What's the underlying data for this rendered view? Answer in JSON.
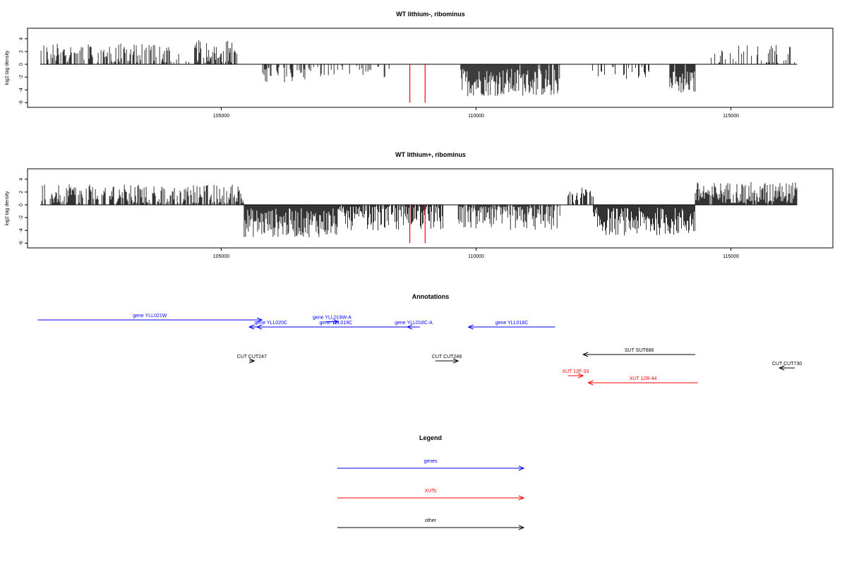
{
  "chart_data": [
    {
      "type": "bar",
      "title": "WT lithium-, ribominus",
      "ylabel": "log2 tag density",
      "xlim": [
        101200,
        117000
      ],
      "ylim": [
        -6.3,
        5.2
      ],
      "yticks": [
        "4",
        "2",
        "0",
        "-2",
        "-4",
        "-6"
      ],
      "xticks": [
        "105000",
        "110000",
        "115000"
      ],
      "grid": false,
      "highlight_color": "#ff0000",
      "bar_color": "#000000",
      "highlighted_x": [
        108700,
        109000
      ],
      "highlighted_y": [
        -6.0,
        -6.0
      ],
      "segments": [
        {
          "from": 101450,
          "to": 104200,
          "density": 0.55,
          "mean": 1.7,
          "amp": 1.6
        },
        {
          "from": 104200,
          "to": 104450,
          "density": 0.1,
          "mean": 1.0,
          "amp": 0.8
        },
        {
          "from": 104450,
          "to": 105350,
          "density": 0.7,
          "mean": 2.0,
          "amp": 1.8
        },
        {
          "from": 105700,
          "to": 106700,
          "density": 0.35,
          "mean": -1.6,
          "amp": 1.2
        },
        {
          "from": 106700,
          "to": 108300,
          "density": 0.28,
          "mean": -1.2,
          "amp": 1.0
        },
        {
          "from": 109700,
          "to": 111650,
          "density": 0.95,
          "mean": -2.8,
          "amp": 2.2
        },
        {
          "from": 112200,
          "to": 113400,
          "density": 0.3,
          "mean": -1.3,
          "amp": 1.0
        },
        {
          "from": 113800,
          "to": 114300,
          "density": 0.9,
          "mean": -2.8,
          "amp": 1.8
        },
        {
          "from": 114600,
          "to": 116300,
          "density": 0.22,
          "mean": 1.6,
          "amp": 1.6
        }
      ]
    },
    {
      "type": "bar",
      "title": "WT lithium+, ribominus",
      "ylabel": "log2 tag density",
      "xlim": [
        101200,
        117000
      ],
      "ylim": [
        -6.3,
        5.2
      ],
      "yticks": [
        "4",
        "2",
        "0",
        "-2",
        "-4",
        "-6"
      ],
      "xticks": [
        "105000",
        "110000",
        "115000"
      ],
      "grid": false,
      "highlight_color": "#ff0000",
      "bar_color": "#000000",
      "highlighted_x": [
        108700,
        109000
      ],
      "highlighted_y": [
        -6.0,
        -6.0
      ],
      "segments": [
        {
          "from": 101450,
          "to": 105450,
          "density": 0.7,
          "mean": 1.6,
          "amp": 1.6
        },
        {
          "from": 105450,
          "to": 107300,
          "density": 1.0,
          "mean": -2.8,
          "amp": 2.3
        },
        {
          "from": 107300,
          "to": 109350,
          "density": 0.8,
          "mean": -2.0,
          "amp": 2.0
        },
        {
          "from": 109650,
          "to": 111650,
          "density": 0.85,
          "mean": -2.0,
          "amp": 2.0
        },
        {
          "from": 111800,
          "to": 112300,
          "density": 0.6,
          "mean": 1.4,
          "amp": 1.4
        },
        {
          "from": 112300,
          "to": 114300,
          "density": 1.0,
          "mean": -2.6,
          "amp": 2.2
        },
        {
          "from": 114300,
          "to": 116300,
          "density": 0.95,
          "mean": 1.8,
          "amp": 1.8
        }
      ]
    }
  ],
  "annotations": {
    "title": "Annotations",
    "xlim": [
      101200,
      117000
    ],
    "genes_color": "#0000ff",
    "xuts_color": "#ff0000",
    "other_color": "#000000",
    "features": [
      {
        "label": "gene YLL021W",
        "start": 101400,
        "end": 105800,
        "strand": "+",
        "row": 0,
        "kind": "gene"
      },
      {
        "label": "gene YLL020C",
        "start": 105550,
        "end": 106400,
        "strand": "-",
        "row": 1,
        "kind": "gene"
      },
      {
        "label": "gene YLL019W-A",
        "start": 107050,
        "end": 107300,
        "strand": "+",
        "row": 0.25,
        "kind": "gene"
      },
      {
        "label": "gene YLL019C",
        "start": 105700,
        "end": 108800,
        "strand": "-",
        "row": 1,
        "kind": "gene"
      },
      {
        "label": "gene YLL018C-A",
        "start": 108650,
        "end": 108900,
        "strand": "-",
        "row": 1,
        "kind": "gene"
      },
      {
        "label": "gene YLL018C",
        "start": 109850,
        "end": 111550,
        "strand": "-",
        "row": 1,
        "kind": "gene"
      },
      {
        "label": "CUT CUT247",
        "start": 105550,
        "end": 105650,
        "strand": "+",
        "row": 5.8,
        "kind": "other"
      },
      {
        "label": "CUT CUT248",
        "start": 109200,
        "end": 109650,
        "strand": "+",
        "row": 5.8,
        "kind": "other"
      },
      {
        "label": "SUT SUT686",
        "start": 112100,
        "end": 114300,
        "strand": "-",
        "row": 4.9,
        "kind": "other"
      },
      {
        "label": "CUT CUT730",
        "start": 115950,
        "end": 116250,
        "strand": "-",
        "row": 6.8,
        "kind": "other"
      },
      {
        "label": "XUT 12F-33",
        "start": 111800,
        "end": 112100,
        "strand": "+",
        "row": 7.9,
        "kind": "xut"
      },
      {
        "label": "XUT 12R-44",
        "start": 112200,
        "end": 114350,
        "strand": "-",
        "row": 8.9,
        "kind": "xut"
      }
    ]
  },
  "legend": {
    "title": "Legend",
    "items": [
      {
        "label": "genes",
        "color": "#0000ff"
      },
      {
        "label": "XUTs",
        "color": "#ff0000"
      },
      {
        "label": "other",
        "color": "#000000"
      }
    ]
  }
}
